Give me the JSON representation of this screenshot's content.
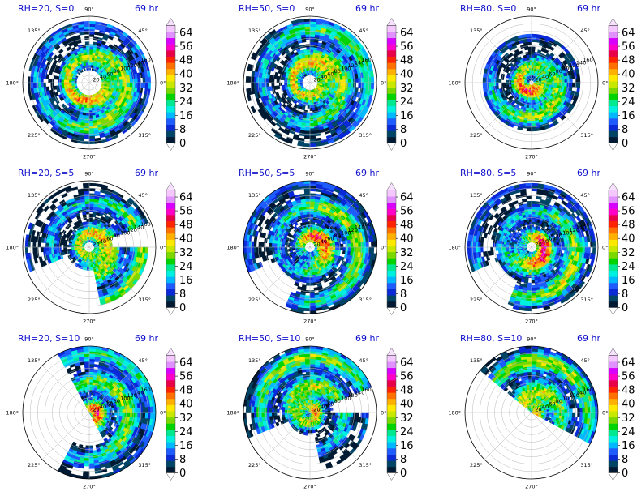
{
  "chart_data": {
    "type": "heatmap",
    "layout": {
      "rows": 3,
      "cols": 3
    },
    "colorbar": {
      "ticks": [
        "0",
        "8",
        "16",
        "24",
        "32",
        "40",
        "48",
        "56",
        "64"
      ],
      "range": [
        0,
        64
      ],
      "extend": "both",
      "colors": [
        "#001a33",
        "#004466",
        "#0a2ad8",
        "#1e5cff",
        "#00b8ff",
        "#00f0e0",
        "#00e890",
        "#00d400",
        "#7ad800",
        "#c8e800",
        "#ffe800",
        "#ffb000",
        "#ff7000",
        "#ff2400",
        "#e80048",
        "#ff00c8",
        "#d800ff",
        "#e090ff",
        "#f4c8ff"
      ]
    },
    "angular_tick_labels": [
      "90°",
      "45°",
      "0°",
      "315°",
      "270°",
      "225°",
      "180°",
      "135°"
    ],
    "angular_tick_angles_deg": [
      90,
      45,
      0,
      315,
      270,
      225,
      180,
      135
    ],
    "radial_tick_labels": [
      "20",
      "40",
      "60",
      "80",
      "100",
      "120",
      "140",
      "160"
    ],
    "radial_max": 180,
    "panels": [
      {
        "title": "RH=20, S=0",
        "time_label": "69 hr",
        "rh": 20,
        "shear": 0,
        "eye_radius": 38,
        "outer_radius": 165,
        "coverage": "full",
        "peak_sector_deg": 330,
        "intensity": 0.85
      },
      {
        "title": "RH=50, S=0",
        "time_label": "69 hr",
        "rh": 50,
        "shear": 0,
        "eye_radius": 24,
        "outer_radius": 170,
        "coverage": "full",
        "peak_sector_deg": 20,
        "intensity": 0.9
      },
      {
        "title": "RH=80, S=0",
        "time_label": "69 hr",
        "rh": 80,
        "shear": 0,
        "eye_radius": 10,
        "outer_radius": 130,
        "coverage": "full",
        "peak_sector_deg": 300,
        "intensity": 1.0
      },
      {
        "title": "RH=20, S=5",
        "time_label": "69 hr",
        "rh": 20,
        "shear": 5,
        "eye_radius": 12,
        "outer_radius": 175,
        "coverage": "north",
        "peak_sector_deg": 330,
        "intensity": 0.85
      },
      {
        "title": "RH=50, S=5",
        "time_label": "69 hr",
        "rh": 50,
        "shear": 5,
        "eye_radius": 12,
        "outer_radius": 178,
        "coverage": "wide",
        "peak_sector_deg": 20,
        "intensity": 0.85
      },
      {
        "title": "RH=80, S=5",
        "time_label": "69 hr",
        "rh": 80,
        "shear": 5,
        "eye_radius": 14,
        "outer_radius": 170,
        "coverage": "wide",
        "peak_sector_deg": 330,
        "intensity": 0.95
      },
      {
        "title": "RH=20, S=10",
        "time_label": "69 hr",
        "rh": 20,
        "shear": 10,
        "eye_radius": 0,
        "outer_radius": 180,
        "coverage": "east",
        "peak_sector_deg": 20,
        "intensity": 0.8
      },
      {
        "title": "RH=50, S=10",
        "time_label": "69 hr",
        "rh": 50,
        "shear": 10,
        "eye_radius": 0,
        "outer_radius": 180,
        "coverage": "north",
        "peak_sector_deg": 90,
        "intensity": 0.9
      },
      {
        "title": "RH=80, S=10",
        "time_label": "69 hr",
        "rh": 80,
        "shear": 10,
        "eye_radius": 0,
        "outer_radius": 180,
        "coverage": "ne",
        "peak_sector_deg": 60,
        "intensity": 1.0
      }
    ]
  }
}
